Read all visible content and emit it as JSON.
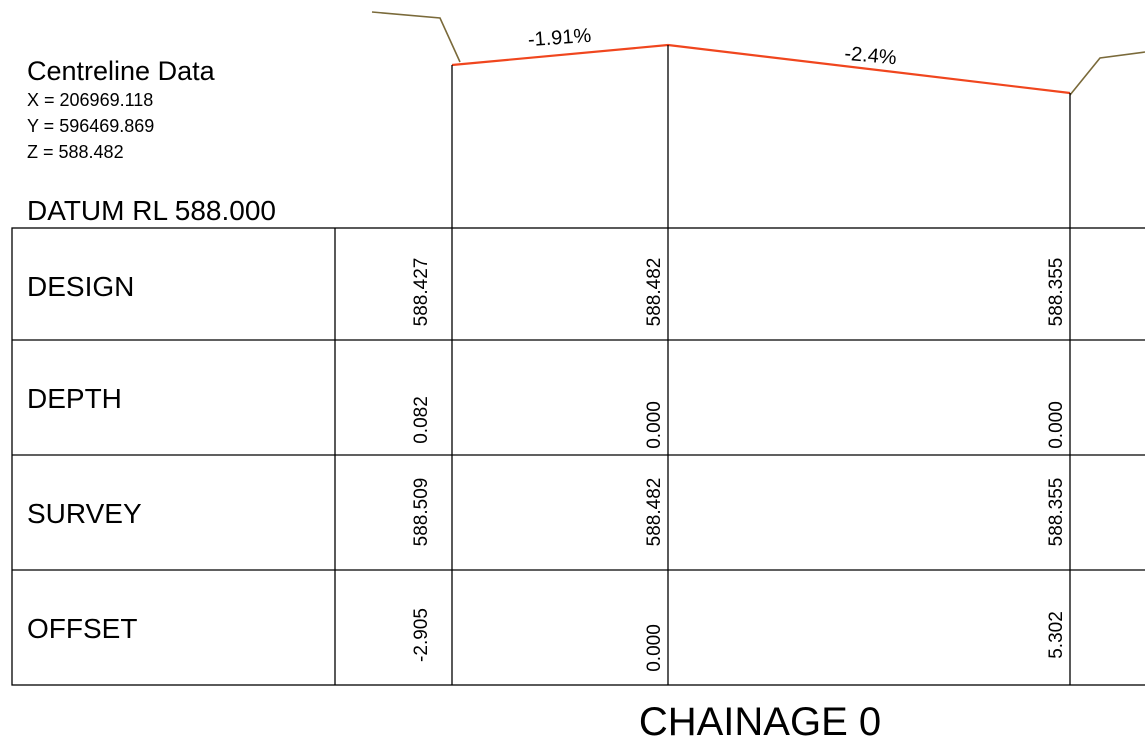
{
  "centreline": {
    "title": "Centreline Data",
    "x": "X = 206969.118",
    "y": "Y = 596469.869",
    "z": "Z = 588.482"
  },
  "datum": "DATUM RL 588.000",
  "grades": [
    "-1.91%",
    "-2.4%"
  ],
  "table": {
    "rows": [
      {
        "label": "DESIGN",
        "values": [
          "588.427",
          "588.482",
          "588.355"
        ]
      },
      {
        "label": "DEPTH",
        "values": [
          "0.082",
          "0.000",
          "0.000"
        ]
      },
      {
        "label": "SURVEY",
        "values": [
          "588.509",
          "588.482",
          "588.355"
        ]
      },
      {
        "label": "OFFSET",
        "values": [
          "-2.905",
          "0.000",
          "5.302"
        ]
      }
    ]
  },
  "chainage": "CHAINAGE 0"
}
